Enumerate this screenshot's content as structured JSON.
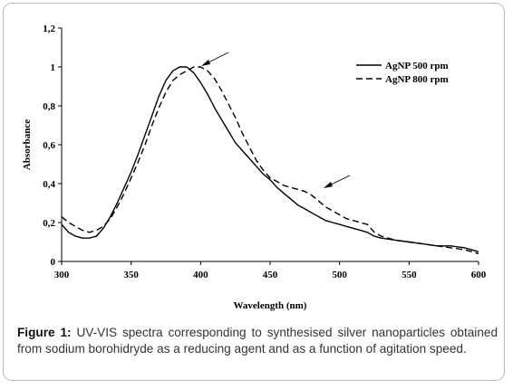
{
  "chart_data": {
    "type": "line",
    "xlabel": "Wavelength (nm)",
    "ylabel": "Absorbance",
    "xlim": [
      300,
      600
    ],
    "ylim": [
      0,
      1.2
    ],
    "x_ticks": [
      "300",
      "350",
      "400",
      "450",
      "500",
      "550",
      "600"
    ],
    "y_ticks": [
      "0",
      "0,2",
      "0,4",
      "0,6",
      "0,8",
      "1",
      "1,2"
    ],
    "grid": false,
    "legend_position": "top-right",
    "series": [
      {
        "name": "AgNP 500 rpm",
        "style": "solid",
        "x": [
          300,
          305,
          310,
          315,
          320,
          325,
          330,
          335,
          340,
          345,
          350,
          355,
          360,
          365,
          370,
          375,
          380,
          385,
          390,
          395,
          400,
          405,
          410,
          415,
          420,
          425,
          430,
          435,
          440,
          445,
          450,
          455,
          460,
          465,
          470,
          475,
          480,
          485,
          490,
          495,
          500,
          505,
          510,
          515,
          520,
          525,
          530,
          540,
          550,
          560,
          570,
          580,
          590,
          600
        ],
        "y": [
          0.19,
          0.15,
          0.13,
          0.12,
          0.12,
          0.13,
          0.17,
          0.23,
          0.3,
          0.38,
          0.46,
          0.55,
          0.65,
          0.75,
          0.85,
          0.93,
          0.98,
          1.0,
          1.0,
          0.97,
          0.92,
          0.86,
          0.79,
          0.73,
          0.67,
          0.61,
          0.57,
          0.53,
          0.49,
          0.45,
          0.42,
          0.38,
          0.35,
          0.32,
          0.29,
          0.27,
          0.25,
          0.23,
          0.21,
          0.2,
          0.19,
          0.18,
          0.17,
          0.16,
          0.15,
          0.13,
          0.12,
          0.11,
          0.1,
          0.09,
          0.08,
          0.08,
          0.07,
          0.05
        ]
      },
      {
        "name": "AgNP 800 rpm",
        "style": "dashed",
        "x": [
          300,
          305,
          310,
          315,
          320,
          325,
          330,
          335,
          340,
          345,
          350,
          355,
          360,
          365,
          370,
          375,
          380,
          385,
          390,
          395,
          400,
          405,
          410,
          415,
          420,
          425,
          430,
          435,
          440,
          445,
          450,
          455,
          460,
          465,
          470,
          475,
          480,
          485,
          490,
          495,
          500,
          505,
          510,
          515,
          520,
          525,
          530,
          540,
          550,
          560,
          570,
          580,
          590,
          600
        ],
        "y": [
          0.23,
          0.2,
          0.18,
          0.16,
          0.15,
          0.16,
          0.18,
          0.22,
          0.28,
          0.35,
          0.43,
          0.51,
          0.6,
          0.7,
          0.79,
          0.87,
          0.93,
          0.96,
          0.98,
          1.0,
          1.0,
          0.98,
          0.94,
          0.88,
          0.81,
          0.74,
          0.66,
          0.59,
          0.52,
          0.47,
          0.43,
          0.41,
          0.39,
          0.38,
          0.37,
          0.36,
          0.34,
          0.31,
          0.28,
          0.26,
          0.24,
          0.22,
          0.21,
          0.2,
          0.19,
          0.15,
          0.13,
          0.11,
          0.1,
          0.09,
          0.08,
          0.07,
          0.06,
          0.04
        ]
      }
    ]
  },
  "caption": {
    "label": "Figure 1:",
    "text": "UV-VIS spectra corresponding to synthesised silver nanoparticles obtained from sodium borohidryde as a reducing agent and as a function of agitation speed."
  }
}
